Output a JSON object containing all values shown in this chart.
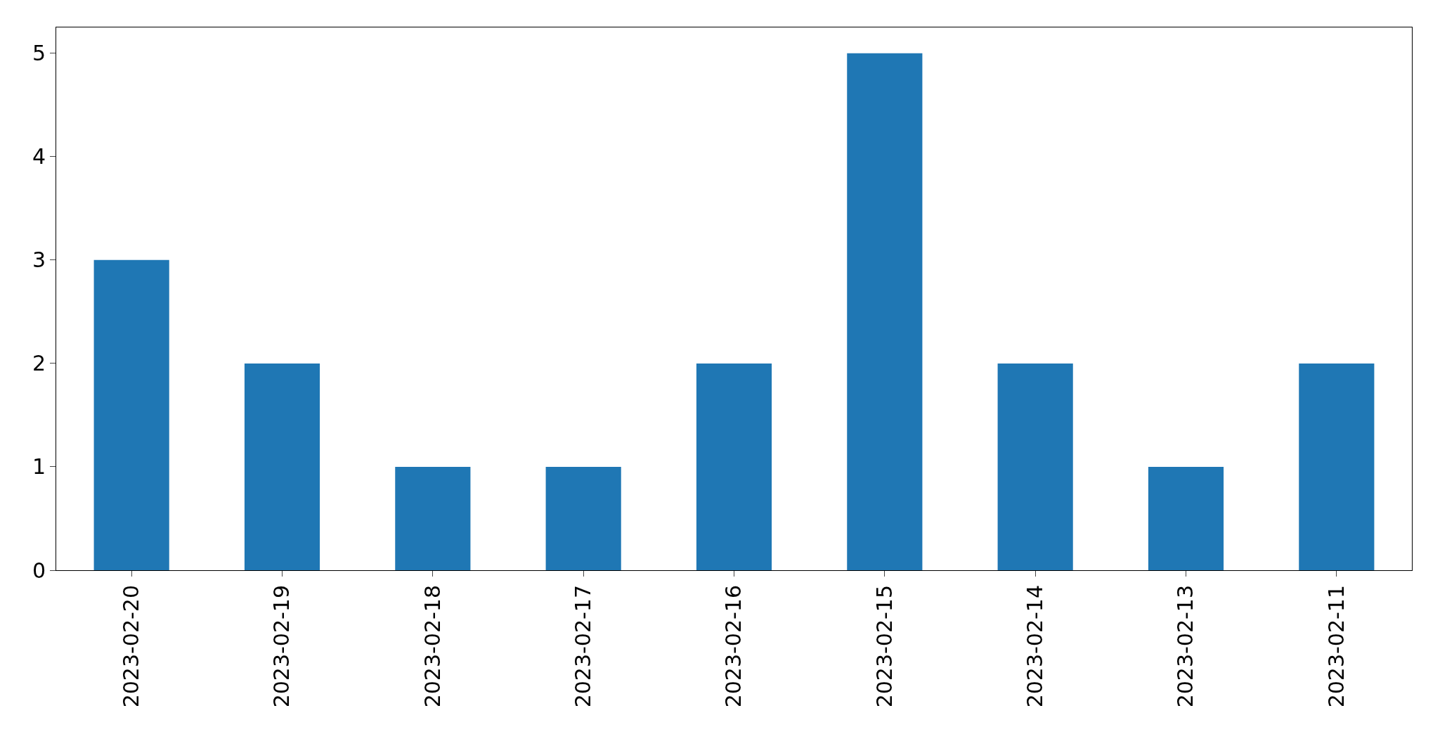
{
  "chart_data": {
    "type": "bar",
    "categories": [
      "2023-02-20",
      "2023-02-19",
      "2023-02-18",
      "2023-02-17",
      "2023-02-16",
      "2023-02-15",
      "2023-02-14",
      "2023-02-13",
      "2023-02-11"
    ],
    "values": [
      3,
      2,
      1,
      1,
      2,
      5,
      2,
      1,
      2
    ],
    "color": "#1f77b4",
    "ylim": [
      0,
      5.25
    ],
    "yticks": [
      0,
      1,
      2,
      3,
      4,
      5
    ]
  }
}
